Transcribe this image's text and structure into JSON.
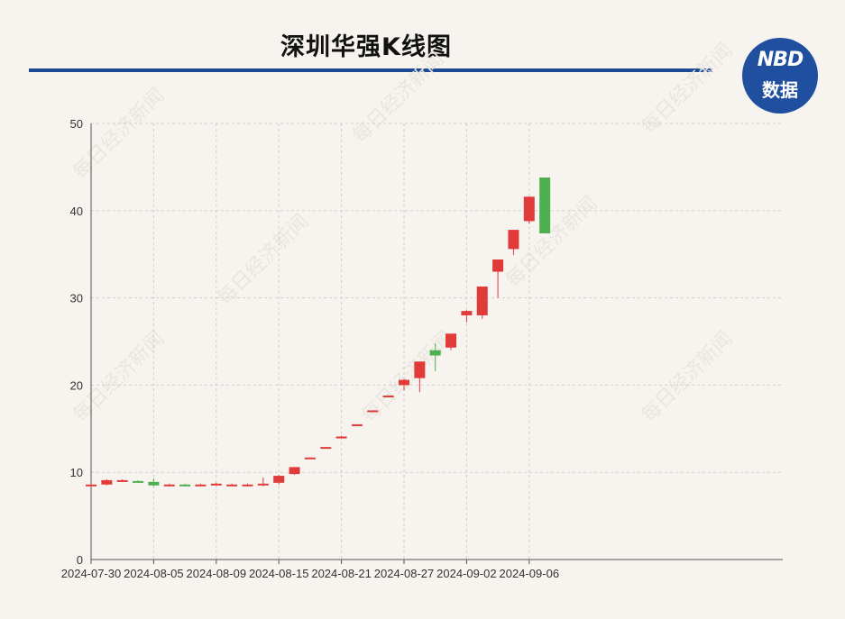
{
  "title": "深圳华强K线图",
  "logo": {
    "line1": "NBD",
    "line2": "数据"
  },
  "watermark": "每日经济新闻",
  "colors": {
    "up": "#e03a3a",
    "down": "#4caf50",
    "rule": "#1c4a95",
    "logo_bg": "#1f4f9e"
  },
  "chart_data": {
    "type": "candlestick",
    "title": "深圳华强K线图",
    "ylim": [
      0,
      50
    ],
    "yticks": [
      0,
      10,
      20,
      30,
      40,
      50
    ],
    "xticks": [
      "2024-07-30",
      "2024-08-05",
      "2024-08-09",
      "2024-08-15",
      "2024-08-21",
      "2024-08-27",
      "2024-09-02",
      "2024-09-06"
    ],
    "grid": true,
    "candles": [
      {
        "date": "2024-07-30",
        "open": 8.4,
        "close": 8.6,
        "high": 8.7,
        "low": 8.3
      },
      {
        "date": "2024-07-31",
        "open": 8.6,
        "close": 9.1,
        "high": 9.2,
        "low": 8.5
      },
      {
        "date": "2024-08-01",
        "open": 9.0,
        "close": 9.1,
        "high": 9.2,
        "low": 8.9
      },
      {
        "date": "2024-08-02",
        "open": 9.0,
        "close": 8.9,
        "high": 9.1,
        "low": 8.8
      },
      {
        "date": "2024-08-05",
        "open": 8.9,
        "close": 8.5,
        "high": 9.3,
        "low": 8.4
      },
      {
        "date": "2024-08-06",
        "open": 8.5,
        "close": 8.6,
        "high": 8.7,
        "low": 8.4
      },
      {
        "date": "2024-08-07",
        "open": 8.6,
        "close": 8.5,
        "high": 8.7,
        "low": 8.4
      },
      {
        "date": "2024-08-08",
        "open": 8.5,
        "close": 8.6,
        "high": 8.7,
        "low": 8.4
      },
      {
        "date": "2024-08-09",
        "open": 8.6,
        "close": 8.7,
        "high": 8.8,
        "low": 8.5
      },
      {
        "date": "2024-08-12",
        "open": 8.6,
        "close": 8.6,
        "high": 8.7,
        "low": 8.5
      },
      {
        "date": "2024-08-13",
        "open": 8.5,
        "close": 8.6,
        "high": 8.7,
        "low": 8.4
      },
      {
        "date": "2024-08-14",
        "open": 8.6,
        "close": 8.7,
        "high": 9.4,
        "low": 8.4
      },
      {
        "date": "2024-08-15",
        "open": 8.8,
        "close": 9.6,
        "high": 9.7,
        "low": 8.6
      },
      {
        "date": "2024-08-16",
        "open": 9.8,
        "close": 10.6,
        "high": 10.6,
        "low": 9.7
      },
      {
        "date": "2024-08-19",
        "open": 11.6,
        "close": 11.7,
        "high": 11.7,
        "low": 11.6
      },
      {
        "date": "2024-08-20",
        "open": 12.8,
        "close": 12.9,
        "high": 12.9,
        "low": 12.8
      },
      {
        "date": "2024-08-21",
        "open": 14.0,
        "close": 14.1,
        "high": 14.2,
        "low": 13.9
      },
      {
        "date": "2024-08-22",
        "open": 15.4,
        "close": 15.5,
        "high": 15.5,
        "low": 15.4
      },
      {
        "date": "2024-08-23",
        "open": 17.0,
        "close": 17.1,
        "high": 17.1,
        "low": 17.0
      },
      {
        "date": "2024-08-26",
        "open": 18.7,
        "close": 18.8,
        "high": 18.8,
        "low": 18.7
      },
      {
        "date": "2024-08-27",
        "open": 20.0,
        "close": 20.6,
        "high": 20.7,
        "low": 19.4
      },
      {
        "date": "2024-08-28",
        "open": 20.8,
        "close": 22.7,
        "high": 22.7,
        "low": 19.2
      },
      {
        "date": "2024-08-29",
        "open": 24.0,
        "close": 23.4,
        "high": 24.8,
        "low": 21.6
      },
      {
        "date": "2024-08-30",
        "open": 24.3,
        "close": 25.9,
        "high": 25.9,
        "low": 24.0
      },
      {
        "date": "2024-09-02",
        "open": 28.0,
        "close": 28.5,
        "high": 28.6,
        "low": 27.2
      },
      {
        "date": "2024-09-03",
        "open": 28.0,
        "close": 31.3,
        "high": 31.3,
        "low": 27.6
      },
      {
        "date": "2024-09-04",
        "open": 33.0,
        "close": 34.4,
        "high": 34.4,
        "low": 30.0
      },
      {
        "date": "2024-09-05",
        "open": 35.6,
        "close": 37.8,
        "high": 37.8,
        "low": 34.9
      },
      {
        "date": "2024-09-06",
        "open": 38.8,
        "close": 41.6,
        "high": 41.6,
        "low": 38.5
      },
      {
        "date": "2024-09-09",
        "open": 43.8,
        "close": 37.4,
        "high": 43.8,
        "low": 37.4
      }
    ]
  }
}
